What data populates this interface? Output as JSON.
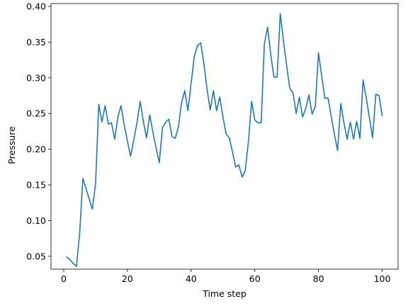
{
  "chart_data": {
    "type": "line",
    "title": "",
    "xlabel": "Time step",
    "ylabel": "Pressure",
    "xlim": [
      -4,
      105
    ],
    "ylim": [
      0.032,
      0.404
    ],
    "xticks": [
      0,
      20,
      40,
      60,
      80,
      100
    ],
    "xtick_labels": [
      "0",
      "20",
      "40",
      "60",
      "80",
      "100"
    ],
    "yticks": [
      0.05,
      0.1,
      0.15,
      0.2,
      0.25,
      0.3,
      0.35,
      0.4
    ],
    "ytick_labels": [
      "0.05",
      "0.10",
      "0.15",
      "0.20",
      "0.25",
      "0.30",
      "0.35",
      "0.40"
    ],
    "grid": false,
    "line_color": "#1f77b4",
    "x": [
      1,
      2,
      3,
      4,
      5,
      6,
      7,
      8,
      9,
      10,
      11,
      12,
      13,
      14,
      15,
      16,
      17,
      18,
      19,
      20,
      21,
      22,
      23,
      24,
      25,
      26,
      27,
      28,
      29,
      30,
      31,
      32,
      33,
      34,
      35,
      36,
      37,
      38,
      39,
      40,
      41,
      42,
      43,
      44,
      45,
      46,
      47,
      48,
      49,
      50,
      51,
      52,
      53,
      54,
      55,
      56,
      57,
      58,
      59,
      60,
      61,
      62,
      63,
      64,
      65,
      66,
      67,
      68,
      69,
      70,
      71,
      72,
      73,
      74,
      75,
      76,
      77,
      78,
      79,
      80,
      81,
      82,
      83,
      84,
      85,
      86,
      87,
      88,
      89,
      90,
      91,
      92,
      93,
      94,
      95,
      96,
      97,
      98,
      99,
      100
    ],
    "y": [
      0.049,
      0.045,
      0.04,
      0.036,
      0.082,
      0.159,
      0.145,
      0.13,
      0.116,
      0.152,
      0.263,
      0.238,
      0.261,
      0.235,
      0.237,
      0.214,
      0.245,
      0.261,
      0.234,
      0.211,
      0.19,
      0.213,
      0.237,
      0.267,
      0.239,
      0.216,
      0.248,
      0.224,
      0.202,
      0.181,
      0.23,
      0.238,
      0.242,
      0.218,
      0.215,
      0.231,
      0.265,
      0.282,
      0.254,
      0.292,
      0.33,
      0.345,
      0.349,
      0.32,
      0.284,
      0.255,
      0.282,
      0.254,
      0.273,
      0.245,
      0.221,
      0.216,
      0.196,
      0.175,
      0.178,
      0.161,
      0.17,
      0.211,
      0.267,
      0.241,
      0.237,
      0.237,
      0.347,
      0.371,
      0.333,
      0.301,
      0.301,
      0.39,
      0.352,
      0.317,
      0.285,
      0.279,
      0.25,
      0.273,
      0.245,
      0.257,
      0.276,
      0.249,
      0.26,
      0.335,
      0.303,
      0.271,
      0.272,
      0.246,
      0.221,
      0.198,
      0.264,
      0.237,
      0.214,
      0.238,
      0.214,
      0.239,
      0.215,
      0.297,
      0.272,
      0.244,
      0.216,
      0.277,
      0.275,
      0.247
    ]
  }
}
